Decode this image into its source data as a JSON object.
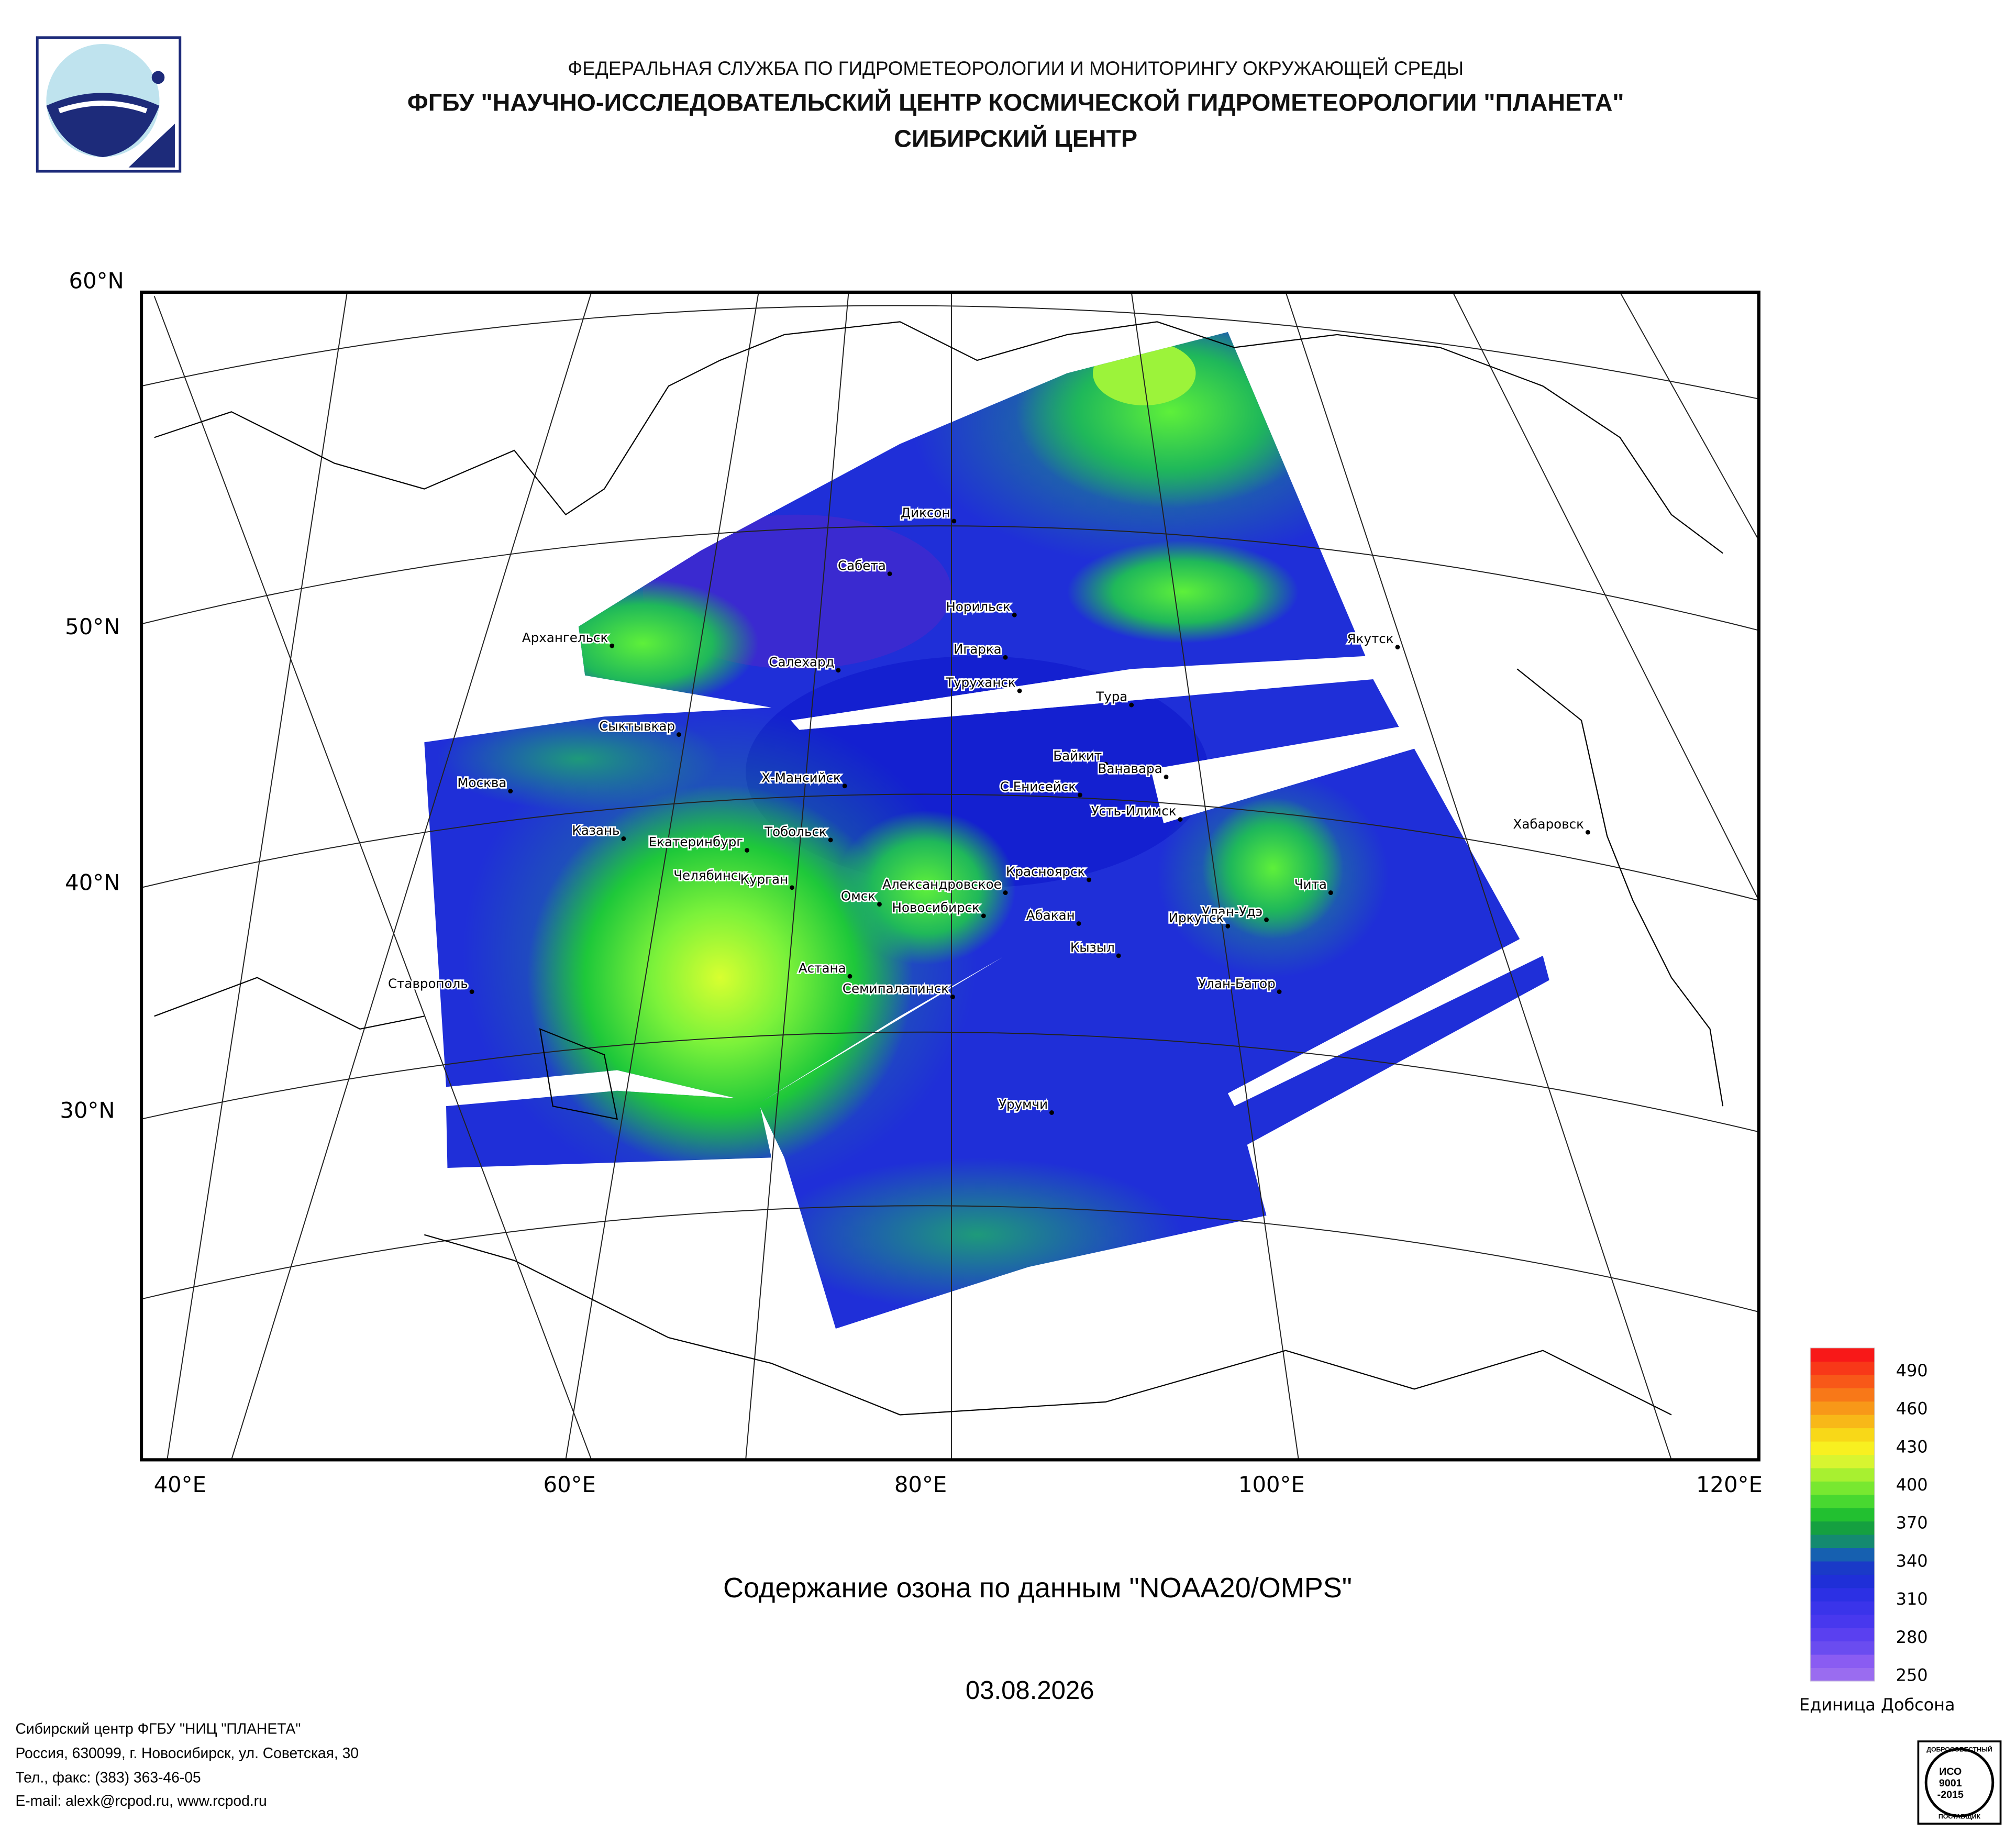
{
  "header": {
    "lines": [
      "ФЕДЕРАЛЬНАЯ СЛУЖБА ПО ГИДРОМЕТЕОРОЛОГИИ И МОНИТОРИНГУ ОКРУЖАЮЩЕЙ СРЕДЫ",
      "ФГБУ \"НАУЧНО-ИССЛЕДОВАТЕЛЬСКИЙ ЦЕНТР КОСМИЧЕСКОЙ ГИДРОМЕТЕОРОЛОГИИ \"ПЛАНЕТА\"",
      "СИБИРСКИЙ ЦЕНТР"
    ]
  },
  "map": {
    "lat_labels": [
      "60°N",
      "50°N",
      "40°N",
      "30°N"
    ],
    "lon_labels": [
      "40°E",
      "60°E",
      "80°E",
      "100°E",
      "120°E"
    ],
    "cities": [
      "Диксон",
      "Сабета",
      "Норильск",
      "Архангельск",
      "Игарка",
      "Салехард",
      "Туруханск",
      "Тура",
      "Якутск",
      "Сыктывкар",
      "Байкит",
      "Ванавара",
      "Х-Мансийск",
      "Москва",
      "С.Енисейск",
      "Усть-Илимск",
      "Хабаровск",
      "Казань",
      "Тобольск",
      "Екатеринбург",
      "Красноярск",
      "Челябинск",
      "Курган",
      "Александровское",
      "Омск",
      "Новосибирск",
      "Абакан",
      "Чита",
      "Улан-Удэ",
      "Иркутск",
      "Кызыл",
      "Ставрополь",
      "Астана",
      "Семипалатинск",
      "Улан-Батор",
      "Урумчи"
    ]
  },
  "title": "Содержание озона по данным \"NOAA20/OMPS\"",
  "date": "03.08.2026",
  "colorbar": {
    "ticks": [
      490,
      460,
      430,
      400,
      370,
      340,
      310,
      280,
      250
    ],
    "unit": "Единица Добсона"
  },
  "footer": {
    "lines": [
      "Сибирский центр ФГБУ \"НИЦ \"ПЛАНЕТА\"",
      "Россия, 630099, г. Новосибирск, ул. Советская, 30",
      "Тел., факс: (383) 363-46-05",
      "E-mail: alexk@rcpod.ru, www.rcpod.ru"
    ]
  },
  "badge": {
    "lines": [
      "ДОБРОСОВЕСТНЫЙ",
      "ИСО",
      "9001",
      "-2015",
      "ПОСТАВЩИК"
    ]
  }
}
